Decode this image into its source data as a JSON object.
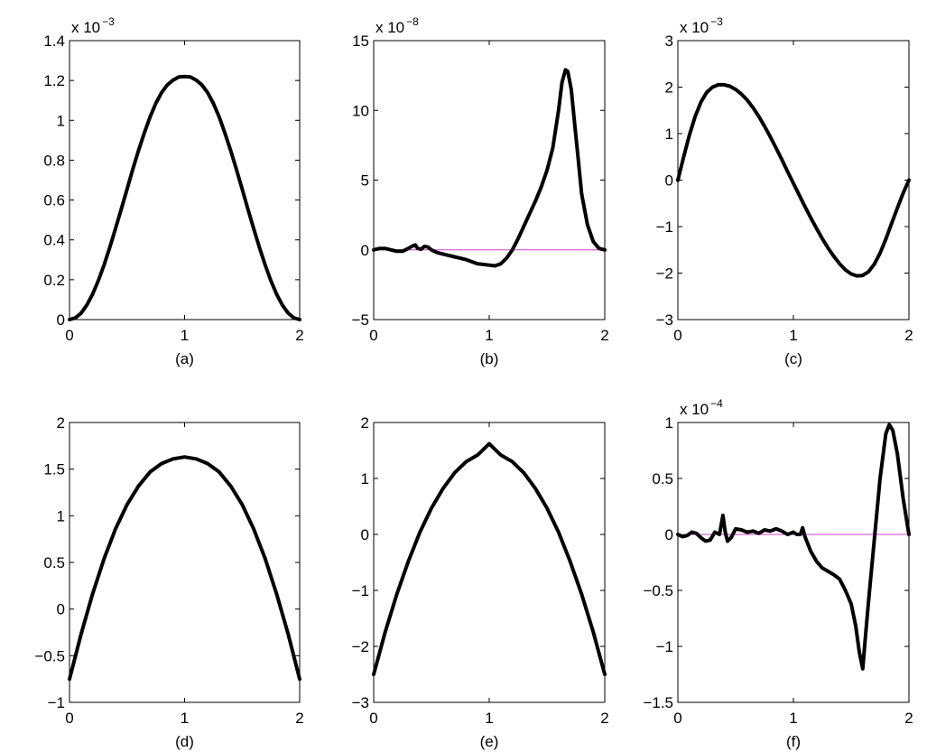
{
  "chart_data": [
    {
      "type": "line",
      "caption": "(a)",
      "exponent": {
        "base": "x 10",
        "power": "−3"
      },
      "xlim": [
        0,
        2
      ],
      "ylim": [
        0,
        1.4
      ],
      "xticks": [
        {
          "v": 0,
          "label": "0"
        },
        {
          "v": 1,
          "label": "1"
        },
        {
          "v": 2,
          "label": "2"
        }
      ],
      "yticks": [
        {
          "v": 0,
          "label": "0"
        },
        {
          "v": 0.2,
          "label": "0.2"
        },
        {
          "v": 0.4,
          "label": "0.4"
        },
        {
          "v": 0.6,
          "label": "0.6"
        },
        {
          "v": 0.8,
          "label": "0.8"
        },
        {
          "v": 1,
          "label": "1"
        },
        {
          "v": 1.2,
          "label": "1.2"
        },
        {
          "v": 1.4,
          "label": "1.4"
        }
      ],
      "zero_line": false,
      "series": [
        {
          "x": [
            0,
            0.05,
            0.1,
            0.15,
            0.2,
            0.25,
            0.3,
            0.35,
            0.4,
            0.45,
            0.5,
            0.55,
            0.6,
            0.65,
            0.7,
            0.75,
            0.8,
            0.85,
            0.9,
            0.95,
            1,
            1.05,
            1.1,
            1.15,
            1.2,
            1.25,
            1.3,
            1.35,
            1.4,
            1.45,
            1.5,
            1.55,
            1.6,
            1.65,
            1.7,
            1.75,
            1.8,
            1.85,
            1.9,
            1.95,
            2
          ],
          "y": [
            0,
            0.008,
            0.032,
            0.072,
            0.127,
            0.195,
            0.274,
            0.362,
            0.457,
            0.555,
            0.655,
            0.754,
            0.849,
            0.937,
            1.017,
            1.085,
            1.139,
            1.178,
            1.202,
            1.218,
            1.22,
            1.218,
            1.202,
            1.178,
            1.139,
            1.085,
            1.017,
            0.937,
            0.849,
            0.754,
            0.655,
            0.555,
            0.457,
            0.362,
            0.274,
            0.195,
            0.127,
            0.072,
            0.032,
            0.008,
            0
          ]
        }
      ]
    },
    {
      "type": "line",
      "caption": "(b)",
      "exponent": {
        "base": "x 10",
        "power": "−8"
      },
      "xlim": [
        0,
        2
      ],
      "ylim": [
        -5,
        15
      ],
      "xticks": [
        {
          "v": 0,
          "label": "0"
        },
        {
          "v": 1,
          "label": "1"
        },
        {
          "v": 2,
          "label": "2"
        }
      ],
      "yticks": [
        {
          "v": -5,
          "label": "−5"
        },
        {
          "v": 0,
          "label": "0"
        },
        {
          "v": 5,
          "label": "5"
        },
        {
          "v": 10,
          "label": "10"
        },
        {
          "v": 15,
          "label": "15"
        }
      ],
      "zero_line": true,
      "series": [
        {
          "x": [
            0,
            0.05,
            0.1,
            0.15,
            0.2,
            0.25,
            0.3,
            0.33,
            0.36,
            0.38,
            0.41,
            0.44,
            0.47,
            0.5,
            0.55,
            0.6,
            0.7,
            0.8,
            0.9,
            1.0,
            1.05,
            1.1,
            1.15,
            1.2,
            1.25,
            1.3,
            1.35,
            1.4,
            1.45,
            1.5,
            1.55,
            1.6,
            1.63,
            1.66,
            1.68,
            1.71,
            1.74,
            1.77,
            1.8,
            1.85,
            1.9,
            1.95,
            2
          ],
          "y": [
            0,
            0.1,
            0.1,
            0,
            -0.1,
            -0.1,
            0.1,
            0.25,
            0.35,
            0.1,
            0.05,
            0.25,
            0.2,
            0,
            -0.2,
            -0.3,
            -0.5,
            -0.7,
            -1.0,
            -1.1,
            -1.15,
            -1.0,
            -0.6,
            0,
            0.8,
            1.7,
            2.6,
            3.5,
            4.5,
            5.7,
            7.3,
            10.0,
            12.0,
            12.9,
            12.8,
            11.5,
            9.0,
            6.5,
            4.0,
            1.8,
            0.6,
            0.1,
            0
          ]
        }
      ]
    },
    {
      "type": "line",
      "caption": "(c)",
      "exponent": {
        "base": "x 10",
        "power": "−3"
      },
      "xlim": [
        0,
        2
      ],
      "ylim": [
        -3,
        3
      ],
      "xticks": [
        {
          "v": 0,
          "label": "0"
        },
        {
          "v": 1,
          "label": "1"
        },
        {
          "v": 2,
          "label": "2"
        }
      ],
      "yticks": [
        {
          "v": -3,
          "label": "−3"
        },
        {
          "v": -2,
          "label": "−2"
        },
        {
          "v": -1,
          "label": "−1"
        },
        {
          "v": 0,
          "label": "0"
        },
        {
          "v": 1,
          "label": "1"
        },
        {
          "v": 2,
          "label": "2"
        },
        {
          "v": 3,
          "label": "3"
        }
      ],
      "zero_line": false,
      "series": [
        {
          "x": [
            0,
            0.05,
            0.1,
            0.15,
            0.2,
            0.25,
            0.3,
            0.35,
            0.4,
            0.45,
            0.5,
            0.55,
            0.6,
            0.65,
            0.7,
            0.75,
            0.8,
            0.85,
            0.9,
            0.95,
            1,
            1.05,
            1.1,
            1.15,
            1.2,
            1.25,
            1.3,
            1.35,
            1.4,
            1.45,
            1.5,
            1.55,
            1.6,
            1.65,
            1.7,
            1.75,
            1.8,
            1.85,
            1.9,
            1.95,
            2
          ],
          "y": [
            0,
            0.5,
            0.97,
            1.37,
            1.68,
            1.89,
            2.0,
            2.05,
            2.05,
            2.02,
            1.95,
            1.85,
            1.72,
            1.56,
            1.37,
            1.16,
            0.93,
            0.69,
            0.44,
            0.18,
            -0.07,
            -0.32,
            -0.57,
            -0.81,
            -1.04,
            -1.26,
            -1.46,
            -1.64,
            -1.8,
            -1.93,
            -2.02,
            -2.06,
            -2.05,
            -1.97,
            -1.81,
            -1.57,
            -1.27,
            -0.93,
            -0.6,
            -0.28,
            0
          ]
        }
      ]
    },
    {
      "type": "line",
      "caption": "(d)",
      "exponent": null,
      "xlim": [
        0,
        2
      ],
      "ylim": [
        -1,
        2
      ],
      "xticks": [
        {
          "v": 0,
          "label": "0"
        },
        {
          "v": 1,
          "label": "1"
        },
        {
          "v": 2,
          "label": "2"
        }
      ],
      "yticks": [
        {
          "v": -1,
          "label": "−1"
        },
        {
          "v": -0.5,
          "label": "−0.5"
        },
        {
          "v": 0,
          "label": "0"
        },
        {
          "v": 0.5,
          "label": "0.5"
        },
        {
          "v": 1,
          "label": "1"
        },
        {
          "v": 1.5,
          "label": "1.5"
        },
        {
          "v": 2,
          "label": "2"
        }
      ],
      "zero_line": false,
      "series": [
        {
          "x": [
            0,
            0.1,
            0.2,
            0.3,
            0.4,
            0.5,
            0.6,
            0.7,
            0.8,
            0.9,
            1,
            1.1,
            1.2,
            1.3,
            1.4,
            1.5,
            1.6,
            1.7,
            1.8,
            1.9,
            2
          ],
          "y": [
            -0.75,
            -0.27,
            0.16,
            0.54,
            0.86,
            1.12,
            1.32,
            1.47,
            1.56,
            1.61,
            1.63,
            1.61,
            1.56,
            1.47,
            1.32,
            1.12,
            0.86,
            0.54,
            0.16,
            -0.27,
            -0.75
          ]
        }
      ]
    },
    {
      "type": "line",
      "caption": "(e)",
      "exponent": null,
      "xlim": [
        0,
        2
      ],
      "ylim": [
        -3,
        2
      ],
      "xticks": [
        {
          "v": 0,
          "label": "0"
        },
        {
          "v": 1,
          "label": "1"
        },
        {
          "v": 2,
          "label": "2"
        }
      ],
      "yticks": [
        {
          "v": -3,
          "label": "−3"
        },
        {
          "v": -2,
          "label": "−2"
        },
        {
          "v": -1,
          "label": "−1"
        },
        {
          "v": 0,
          "label": "0"
        },
        {
          "v": 1,
          "label": "1"
        },
        {
          "v": 2,
          "label": "2"
        }
      ],
      "zero_line": false,
      "series": [
        {
          "x": [
            0,
            0.1,
            0.2,
            0.3,
            0.4,
            0.5,
            0.6,
            0.7,
            0.8,
            0.9,
            1,
            1.1,
            1.2,
            1.3,
            1.4,
            1.5,
            1.6,
            1.7,
            1.8,
            1.9,
            2
          ],
          "y": [
            -2.5,
            -1.74,
            -1.07,
            -0.48,
            0.04,
            0.47,
            0.82,
            1.1,
            1.3,
            1.42,
            1.62,
            1.42,
            1.3,
            1.1,
            0.82,
            0.47,
            0.04,
            -0.48,
            -1.07,
            -1.74,
            -2.5
          ]
        }
      ]
    },
    {
      "type": "line",
      "caption": "(f)",
      "exponent": {
        "base": "x 10",
        "power": "−4"
      },
      "xlim": [
        0,
        2
      ],
      "ylim": [
        -1.5,
        1
      ],
      "xticks": [
        {
          "v": 0,
          "label": "0"
        },
        {
          "v": 1,
          "label": "1"
        },
        {
          "v": 2,
          "label": "2"
        }
      ],
      "yticks": [
        {
          "v": -1.5,
          "label": "−1.5"
        },
        {
          "v": -1,
          "label": "−1"
        },
        {
          "v": -0.5,
          "label": "−0.5"
        },
        {
          "v": 0,
          "label": "0"
        },
        {
          "v": 0.5,
          "label": "0.5"
        },
        {
          "v": 1,
          "label": "1"
        }
      ],
      "zero_line": true,
      "series": [
        {
          "x": [
            0,
            0.04,
            0.08,
            0.12,
            0.16,
            0.2,
            0.24,
            0.28,
            0.32,
            0.36,
            0.39,
            0.41,
            0.43,
            0.46,
            0.5,
            0.55,
            0.6,
            0.65,
            0.7,
            0.75,
            0.8,
            0.85,
            0.9,
            0.95,
            1.0,
            1.03,
            1.06,
            1.08,
            1.1,
            1.15,
            1.2,
            1.25,
            1.3,
            1.35,
            1.4,
            1.45,
            1.5,
            1.54,
            1.57,
            1.6,
            1.62,
            1.65,
            1.7,
            1.75,
            1.8,
            1.83,
            1.86,
            1.9,
            1.95,
            2
          ],
          "y": [
            0,
            -0.02,
            -0.01,
            0.02,
            0.01,
            -0.03,
            -0.06,
            -0.05,
            0.02,
            0.0,
            0.17,
            0.02,
            -0.06,
            -0.03,
            0.05,
            0.04,
            0.02,
            0.03,
            0.01,
            0.04,
            0.03,
            0.05,
            0.03,
            0.0,
            0.02,
            0.0,
            0.0,
            0.06,
            -0.02,
            -0.15,
            -0.24,
            -0.3,
            -0.33,
            -0.36,
            -0.4,
            -0.5,
            -0.62,
            -0.82,
            -1.05,
            -1.2,
            -0.95,
            -0.6,
            -0.05,
            0.5,
            0.9,
            0.98,
            0.93,
            0.72,
            0.32,
            0
          ]
        }
      ]
    }
  ]
}
